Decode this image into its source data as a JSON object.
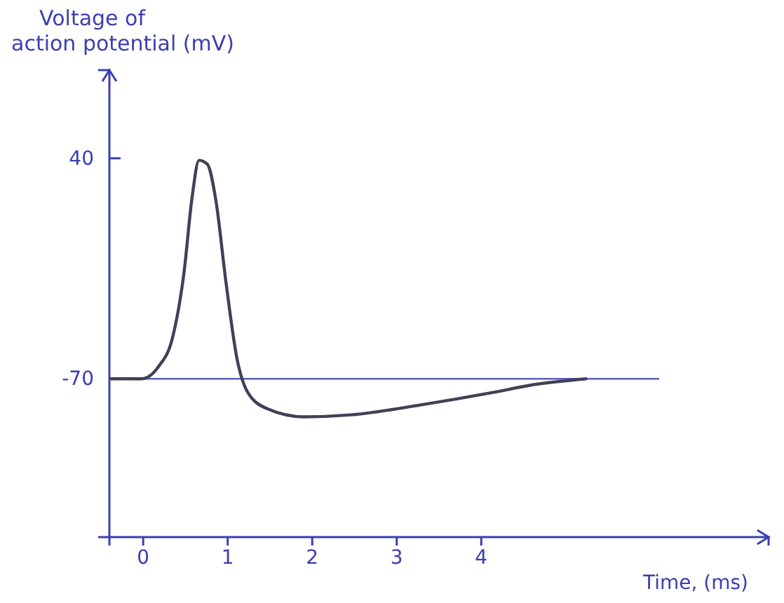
{
  "chart_data": {
    "type": "line",
    "ylabel": "Voltage of action potential (mV)",
    "xlabel": "Time, (ms)",
    "xlim": [
      -0.4,
      7.4
    ],
    "xticks": [
      0,
      1,
      2,
      3,
      4
    ],
    "ylim": [
      -149,
      84
    ],
    "yticks": [
      40,
      -70
    ],
    "series": [
      {
        "color": "#404058",
        "x": [
          -0.38,
          -0.02,
          0.18,
          0.35,
          0.48,
          0.58,
          0.66,
          0.76,
          0.86,
          0.98,
          1.11,
          1.24,
          1.47,
          1.9,
          2.46,
          3.29,
          4.12,
          4.61,
          5.24
        ],
        "values": [
          -70,
          -70,
          -64,
          -49,
          -18,
          21,
          39,
          37,
          19,
          -22,
          -60,
          -77,
          -85,
          -89,
          -88,
          -83,
          -77,
          -73,
          -70
        ]
      }
    ],
    "ref_lines": [
      {
        "axis": "y",
        "value": -70,
        "color": "#5a5fc0"
      }
    ],
    "grid": false,
    "marker": "none",
    "line_style": "solid"
  }
}
